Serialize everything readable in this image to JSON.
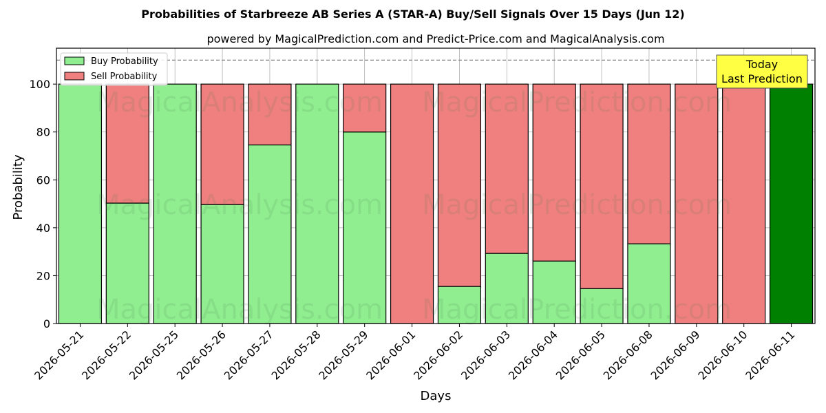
{
  "chart_data": {
    "type": "bar",
    "stacked": true,
    "title": "Probabilities of Starbreeze AB Series A (STAR-A) Buy/Sell Signals Over 15 Days (Jun 12)",
    "subtitle": "powered by MagicalPrediction.com and Predict-Price.com and MagicalAnalysis.com",
    "xlabel": "Days",
    "ylabel": "Probability",
    "ylim": [
      0,
      115
    ],
    "yticks": [
      0,
      20,
      40,
      60,
      80,
      100
    ],
    "reference_line": 110,
    "grid": true,
    "legend_position": "top-left",
    "categories": [
      "2026-05-21",
      "2026-05-22",
      "2026-05-25",
      "2026-05-26",
      "2026-05-27",
      "2026-05-28",
      "2026-05-29",
      "2026-06-01",
      "2026-06-02",
      "2026-06-03",
      "2026-06-04",
      "2026-06-05",
      "2026-06-08",
      "2026-06-09",
      "2026-06-10",
      "2026-06-11"
    ],
    "series": [
      {
        "name": "Buy Probability",
        "color": "#90ee90",
        "values": [
          100,
          50.3,
          100,
          49.7,
          74.6,
          100,
          80,
          0,
          15.5,
          29.3,
          26.1,
          14.6,
          33.3,
          0,
          0,
          100
        ]
      },
      {
        "name": "Sell Probability",
        "color": "#f08080",
        "values": [
          0,
          49.7,
          0,
          50.3,
          25.4,
          0,
          20,
          100,
          84.5,
          70.7,
          73.9,
          85.4,
          66.7,
          100,
          100,
          0
        ]
      }
    ],
    "highlight": {
      "index": 15,
      "color": "#008000"
    },
    "annotation": {
      "line1": "Today",
      "line2": "Last Prediction",
      "background": "#ffff44"
    },
    "watermarks": [
      "MagicalAnalysis.com",
      "MagicalPrediction.com"
    ]
  }
}
